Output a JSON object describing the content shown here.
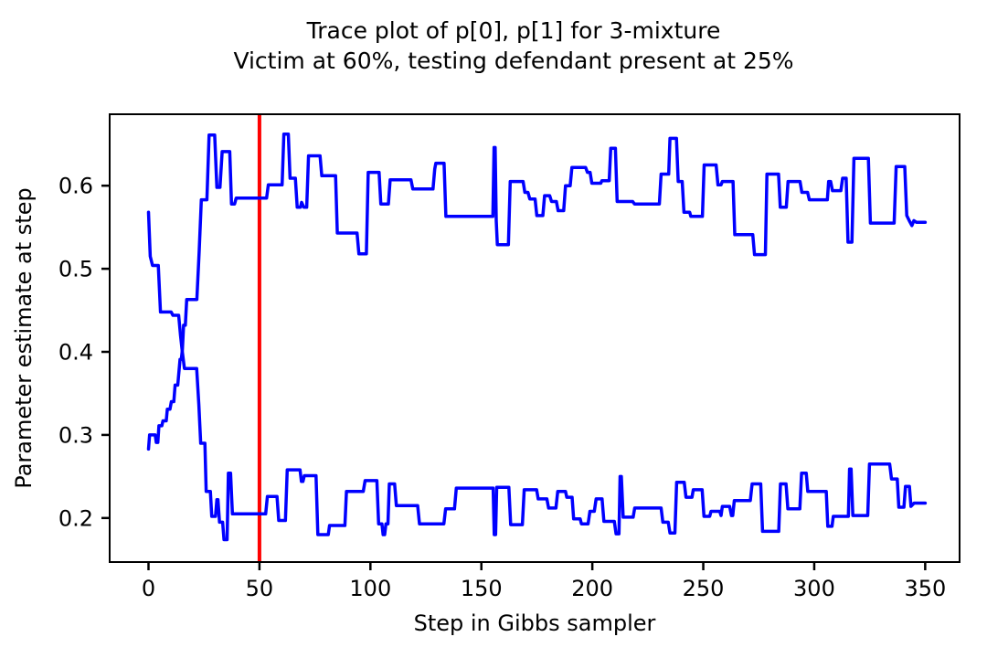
{
  "figure": {
    "title_line1": "Trace plot of p[0], p[1] for 3-mixture",
    "title_line2": "Victim at 60%, testing defendant present at 25%"
  },
  "chart_data": {
    "type": "line",
    "title": "Trace plot of p[0], p[1] for 3-mixture",
    "subtitle": "Victim at 60%, testing defendant present at 25%",
    "xlabel": "Step in Gibbs sampler",
    "ylabel": "Parameter estimate at step",
    "xlim": [
      -17.5,
      365.5
    ],
    "ylim": [
      0.147,
      0.686
    ],
    "xticks": [
      0,
      50,
      100,
      150,
      200,
      250,
      300,
      350
    ],
    "yticks": [
      "0.2",
      "0.3",
      "0.4",
      "0.5",
      "0.6"
    ],
    "grid": false,
    "legend_position": "none",
    "trace_color": "#0000ff",
    "axis_color": "#000000",
    "vline": {
      "x": 50,
      "color": "#ff0000"
    },
    "series": [
      {
        "name": "p[0]",
        "points": [
          [
            0,
            0.283
          ],
          [
            0.5,
            0.3
          ],
          [
            3,
            0.3
          ],
          [
            3.5,
            0.291
          ],
          [
            4.2,
            0.291
          ],
          [
            4.7,
            0.311
          ],
          [
            6,
            0.311
          ],
          [
            6.5,
            0.317
          ],
          [
            8,
            0.317
          ],
          [
            8.5,
            0.331
          ],
          [
            9.7,
            0.331
          ],
          [
            10.3,
            0.34
          ],
          [
            11.4,
            0.34
          ],
          [
            12,
            0.36
          ],
          [
            13.2,
            0.36
          ],
          [
            14.2,
            0.391
          ],
          [
            14.8,
            0.391
          ],
          [
            15.3,
            0.403
          ],
          [
            15.8,
            0.432
          ],
          [
            16.6,
            0.432
          ],
          [
            17.2,
            0.463
          ],
          [
            21.8,
            0.463
          ],
          [
            22.8,
            0.52
          ],
          [
            23.8,
            0.583
          ],
          [
            26.3,
            0.583
          ],
          [
            27.3,
            0.661
          ],
          [
            29.8,
            0.661
          ],
          [
            30.8,
            0.598
          ],
          [
            32.2,
            0.598
          ],
          [
            33.2,
            0.641
          ],
          [
            36.6,
            0.641
          ],
          [
            37.4,
            0.578
          ],
          [
            38.8,
            0.578
          ],
          [
            39.5,
            0.585
          ],
          [
            53.2,
            0.585
          ],
          [
            54,
            0.601
          ],
          [
            60.2,
            0.601
          ],
          [
            61,
            0.662
          ],
          [
            63,
            0.662
          ],
          [
            63.8,
            0.609
          ],
          [
            66.2,
            0.609
          ],
          [
            67,
            0.574
          ],
          [
            68.5,
            0.574
          ],
          [
            69,
            0.58
          ],
          [
            70,
            0.574
          ],
          [
            71.3,
            0.574
          ],
          [
            72.1,
            0.636
          ],
          [
            77.3,
            0.636
          ],
          [
            78.1,
            0.612
          ],
          [
            84.3,
            0.612
          ],
          [
            85.1,
            0.543
          ],
          [
            94,
            0.543
          ],
          [
            94.8,
            0.518
          ],
          [
            98.2,
            0.518
          ],
          [
            99,
            0.616
          ],
          [
            103.9,
            0.616
          ],
          [
            104.7,
            0.578
          ],
          [
            108.1,
            0.578
          ],
          [
            108.9,
            0.607
          ],
          [
            118.3,
            0.607
          ],
          [
            119.1,
            0.596
          ],
          [
            128.2,
            0.596
          ],
          [
            129,
            0.62
          ],
          [
            129.5,
            0.627
          ],
          [
            133.2,
            0.627
          ],
          [
            134,
            0.563
          ],
          [
            155.2,
            0.563
          ],
          [
            155.7,
            0.646
          ],
          [
            156.2,
            0.646
          ],
          [
            156.7,
            0.558
          ],
          [
            157.2,
            0.529
          ],
          [
            162.2,
            0.529
          ],
          [
            163,
            0.605
          ],
          [
            168.8,
            0.605
          ],
          [
            169.6,
            0.592
          ],
          [
            171,
            0.592
          ],
          [
            171.8,
            0.584
          ],
          [
            174.2,
            0.584
          ],
          [
            175,
            0.564
          ],
          [
            177.7,
            0.564
          ],
          [
            178.5,
            0.588
          ],
          [
            180.8,
            0.588
          ],
          [
            181.6,
            0.581
          ],
          [
            183.8,
            0.581
          ],
          [
            184.6,
            0.57
          ],
          [
            187.1,
            0.57
          ],
          [
            187.9,
            0.6
          ],
          [
            190,
            0.6
          ],
          [
            190.8,
            0.622
          ],
          [
            197,
            0.622
          ],
          [
            197.8,
            0.616
          ],
          [
            199,
            0.616
          ],
          [
            199.8,
            0.603
          ],
          [
            203.8,
            0.603
          ],
          [
            204.3,
            0.606
          ],
          [
            207.6,
            0.606
          ],
          [
            208.3,
            0.645
          ],
          [
            210.4,
            0.645
          ],
          [
            211.2,
            0.581
          ],
          [
            218.2,
            0.581
          ],
          [
            219,
            0.578
          ],
          [
            230.2,
            0.578
          ],
          [
            231,
            0.614
          ],
          [
            234.4,
            0.614
          ],
          [
            235,
            0.657
          ],
          [
            237.9,
            0.657
          ],
          [
            238.7,
            0.605
          ],
          [
            240.5,
            0.605
          ],
          [
            241.3,
            0.568
          ],
          [
            243.9,
            0.568
          ],
          [
            244.4,
            0.563
          ],
          [
            249.6,
            0.563
          ],
          [
            250.4,
            0.625
          ],
          [
            255.8,
            0.625
          ],
          [
            256.6,
            0.601
          ],
          [
            258,
            0.601
          ],
          [
            258.6,
            0.605
          ],
          [
            263.4,
            0.605
          ],
          [
            264.2,
            0.541
          ],
          [
            272.3,
            0.541
          ],
          [
            273.1,
            0.517
          ],
          [
            278,
            0.517
          ],
          [
            278.7,
            0.614
          ],
          [
            283.9,
            0.614
          ],
          [
            284.7,
            0.574
          ],
          [
            287.4,
            0.574
          ],
          [
            288.2,
            0.605
          ],
          [
            293.6,
            0.605
          ],
          [
            294.4,
            0.592
          ],
          [
            297,
            0.592
          ],
          [
            297.8,
            0.583
          ],
          [
            305.9,
            0.583
          ],
          [
            306.5,
            0.605
          ],
          [
            307.4,
            0.605
          ],
          [
            308.2,
            0.594
          ],
          [
            312,
            0.594
          ],
          [
            312.8,
            0.609
          ],
          [
            314.4,
            0.609
          ],
          [
            315.2,
            0.532
          ],
          [
            317,
            0.532
          ],
          [
            317.9,
            0.633
          ],
          [
            324.4,
            0.633
          ],
          [
            325.3,
            0.555
          ],
          [
            336,
            0.555
          ],
          [
            336.9,
            0.623
          ],
          [
            340.8,
            0.623
          ],
          [
            341.7,
            0.564
          ],
          [
            342.8,
            0.558
          ],
          [
            344,
            0.552
          ],
          [
            344.9,
            0.558
          ],
          [
            346,
            0.556
          ],
          [
            350,
            0.556
          ]
        ]
      },
      {
        "name": "p[1]",
        "points": [
          [
            0,
            0.568
          ],
          [
            0.8,
            0.515
          ],
          [
            1.8,
            0.504
          ],
          [
            4.4,
            0.504
          ],
          [
            5.4,
            0.448
          ],
          [
            10.2,
            0.448
          ],
          [
            11,
            0.444
          ],
          [
            13.6,
            0.444
          ],
          [
            14.4,
            0.42
          ],
          [
            15.2,
            0.401
          ],
          [
            16.2,
            0.38
          ],
          [
            21.7,
            0.38
          ],
          [
            22.7,
            0.336
          ],
          [
            23.5,
            0.29
          ],
          [
            25.4,
            0.29
          ],
          [
            26,
            0.232
          ],
          [
            27.9,
            0.232
          ],
          [
            28.5,
            0.202
          ],
          [
            30.2,
            0.202
          ],
          [
            30.8,
            0.222
          ],
          [
            31.3,
            0.222
          ],
          [
            32,
            0.195
          ],
          [
            33.4,
            0.195
          ],
          [
            34,
            0.174
          ],
          [
            35.4,
            0.174
          ],
          [
            36,
            0.254
          ],
          [
            37,
            0.254
          ],
          [
            37.8,
            0.205
          ],
          [
            52.8,
            0.205
          ],
          [
            53.6,
            0.226
          ],
          [
            57.9,
            0.226
          ],
          [
            58.7,
            0.197
          ],
          [
            61.7,
            0.197
          ],
          [
            62.5,
            0.258
          ],
          [
            68.3,
            0.258
          ],
          [
            68.9,
            0.244
          ],
          [
            69.6,
            0.244
          ],
          [
            70.2,
            0.251
          ],
          [
            75.5,
            0.251
          ],
          [
            76.3,
            0.18
          ],
          [
            81,
            0.18
          ],
          [
            81.6,
            0.191
          ],
          [
            88.5,
            0.191
          ],
          [
            89.2,
            0.232
          ],
          [
            96.8,
            0.232
          ],
          [
            97.6,
            0.245
          ],
          [
            102.9,
            0.245
          ],
          [
            103.7,
            0.193
          ],
          [
            105.2,
            0.193
          ],
          [
            105.7,
            0.18
          ],
          [
            106.4,
            0.18
          ],
          [
            107,
            0.193
          ],
          [
            107.9,
            0.193
          ],
          [
            108.5,
            0.241
          ],
          [
            110.9,
            0.241
          ],
          [
            111.7,
            0.215
          ],
          [
            121.3,
            0.215
          ],
          [
            122.1,
            0.193
          ],
          [
            133.1,
            0.193
          ],
          [
            133.9,
            0.211
          ],
          [
            137.9,
            0.211
          ],
          [
            138.7,
            0.236
          ],
          [
            155.3,
            0.236
          ],
          [
            155.8,
            0.18
          ],
          [
            156.4,
            0.18
          ],
          [
            156.9,
            0.237
          ],
          [
            162.4,
            0.237
          ],
          [
            163.2,
            0.192
          ],
          [
            168.5,
            0.192
          ],
          [
            169.3,
            0.234
          ],
          [
            174.9,
            0.234
          ],
          [
            175.6,
            0.223
          ],
          [
            179.5,
            0.223
          ],
          [
            180.3,
            0.212
          ],
          [
            183.6,
            0.212
          ],
          [
            184.4,
            0.232
          ],
          [
            187.9,
            0.232
          ],
          [
            188.5,
            0.225
          ],
          [
            190.9,
            0.225
          ],
          [
            191.6,
            0.199
          ],
          [
            194.5,
            0.199
          ],
          [
            195.1,
            0.193
          ],
          [
            198.1,
            0.193
          ],
          [
            198.9,
            0.208
          ],
          [
            200.9,
            0.208
          ],
          [
            201.7,
            0.223
          ],
          [
            204.4,
            0.223
          ],
          [
            205.2,
            0.196
          ],
          [
            209.9,
            0.196
          ],
          [
            210.7,
            0.181
          ],
          [
            212,
            0.181
          ],
          [
            212.5,
            0.25
          ],
          [
            213.1,
            0.25
          ],
          [
            213.9,
            0.201
          ],
          [
            218.4,
            0.201
          ],
          [
            219.1,
            0.212
          ],
          [
            231,
            0.212
          ],
          [
            231.8,
            0.195
          ],
          [
            234.2,
            0.195
          ],
          [
            235,
            0.182
          ],
          [
            237.2,
            0.182
          ],
          [
            238,
            0.243
          ],
          [
            241.4,
            0.243
          ],
          [
            242.2,
            0.225
          ],
          [
            244.9,
            0.225
          ],
          [
            245.5,
            0.234
          ],
          [
            249.5,
            0.234
          ],
          [
            250.3,
            0.202
          ],
          [
            252.9,
            0.202
          ],
          [
            253.5,
            0.208
          ],
          [
            257.4,
            0.208
          ],
          [
            258,
            0.203
          ],
          [
            258.6,
            0.214
          ],
          [
            261.9,
            0.214
          ],
          [
            262.7,
            0.203
          ],
          [
            263.3,
            0.203
          ],
          [
            264,
            0.221
          ],
          [
            271.2,
            0.221
          ],
          [
            272,
            0.241
          ],
          [
            275.9,
            0.241
          ],
          [
            276.7,
            0.184
          ],
          [
            284,
            0.184
          ],
          [
            284.8,
            0.241
          ],
          [
            287.3,
            0.241
          ],
          [
            288.1,
            0.211
          ],
          [
            293.5,
            0.211
          ],
          [
            294.3,
            0.254
          ],
          [
            296.4,
            0.254
          ],
          [
            297.1,
            0.232
          ],
          [
            305.4,
            0.232
          ],
          [
            306.1,
            0.19
          ],
          [
            308,
            0.19
          ],
          [
            308.6,
            0.202
          ],
          [
            315.4,
            0.202
          ],
          [
            315.9,
            0.259
          ],
          [
            316.6,
            0.259
          ],
          [
            317.4,
            0.203
          ],
          [
            324.1,
            0.203
          ],
          [
            324.9,
            0.265
          ],
          [
            334,
            0.265
          ],
          [
            334.8,
            0.247
          ],
          [
            337.4,
            0.247
          ],
          [
            338.1,
            0.213
          ],
          [
            340.4,
            0.213
          ],
          [
            341.1,
            0.238
          ],
          [
            342.9,
            0.238
          ],
          [
            343.6,
            0.214
          ],
          [
            345,
            0.218
          ],
          [
            350,
            0.218
          ]
        ]
      }
    ]
  }
}
